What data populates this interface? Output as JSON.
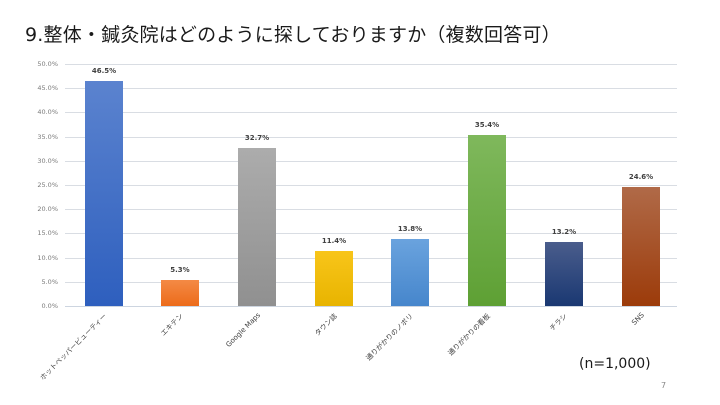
{
  "slide": {
    "title": "9.整体・鍼灸院はどのように探しておりますか（複数回答可）",
    "sample_note": "(n=1,000)",
    "page_number": "7"
  },
  "chart_data": {
    "type": "bar",
    "title": "9.整体・鍼灸院はどのように探しておりますか（複数回答可）",
    "xlabel": "",
    "ylabel": "",
    "ylim": [
      0,
      50
    ],
    "yticks": [
      "0.0%",
      "5.0%",
      "10.0%",
      "15.0%",
      "20.0%",
      "25.0%",
      "30.0%",
      "35.0%",
      "40.0%",
      "45.0%",
      "50.0%"
    ],
    "grid": true,
    "legend": "none",
    "categories": [
      "ホットペッパービューティー",
      "エキテン",
      "Google Maps",
      "タウン誌",
      "通りがかりのノボリ",
      "通りがかりの看板",
      "チラシ",
      "SNS"
    ],
    "values": [
      46.5,
      5.3,
      32.7,
      11.4,
      13.8,
      35.4,
      13.2,
      24.6
    ],
    "value_labels": [
      "46.5%",
      "5.3%",
      "32.7%",
      "11.4%",
      "13.8%",
      "35.4%",
      "13.2%",
      "24.6%"
    ],
    "colors": [
      {
        "top": "#5b83cf",
        "bottom": "#2e5fbe"
      },
      {
        "top": "#f48a45",
        "bottom": "#ec6b1a"
      },
      {
        "top": "#acacac",
        "bottom": "#909090"
      },
      {
        "top": "#f8c51a",
        "bottom": "#e8b400"
      },
      {
        "top": "#6aa3de",
        "bottom": "#4686cc"
      },
      {
        "top": "#7fb85c",
        "bottom": "#5ea034"
      },
      {
        "top": "#4a5d8c",
        "bottom": "#1a3872"
      },
      {
        "top": "#b06a48",
        "bottom": "#9c3b0a"
      }
    ],
    "sample_size": "n=1,000"
  }
}
